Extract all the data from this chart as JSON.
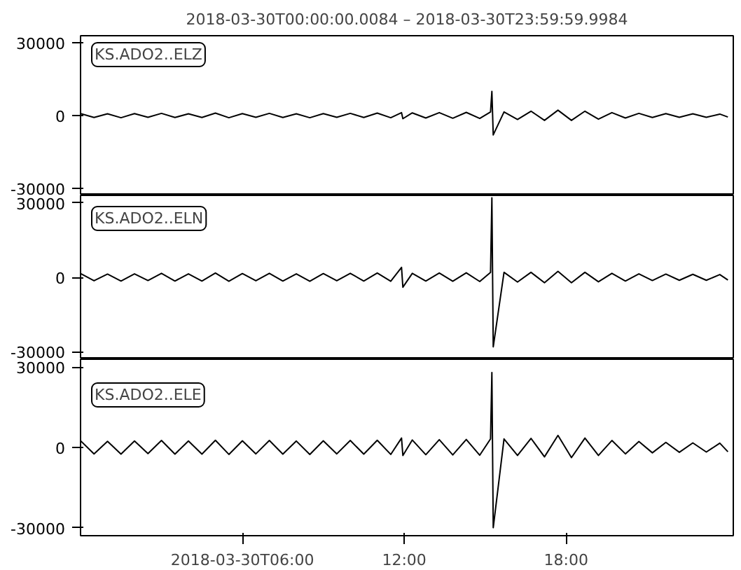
{
  "chart_data": [
    {
      "type": "line",
      "title": "2018-03-30T00:00:00.0084 – 2018-03-30T23:59:59.9984",
      "annotations": [
        "KS.ADO2..ELZ"
      ],
      "xlim": [
        0,
        24.2
      ],
      "ylim": [
        -33000,
        33000
      ],
      "yticks": [
        -30000,
        0,
        30000
      ],
      "tick_labels": "y",
      "series": [
        {
          "color": "#000000",
          "x": [
            0,
            0.5,
            1,
            1.5,
            2,
            2.5,
            3,
            3.5,
            4,
            4.5,
            5,
            5.5,
            6,
            6.5,
            7,
            7.5,
            8,
            8.5,
            9,
            9.5,
            10,
            10.5,
            11,
            11.5,
            11.9,
            11.95,
            12.3,
            12.8,
            13.3,
            13.8,
            14.3,
            14.8,
            15.2,
            15.25,
            15.3,
            15.7,
            16.2,
            16.7,
            17.2,
            17.7,
            18.2,
            18.7,
            19.2,
            19.7,
            20.2,
            20.7,
            21.2,
            21.7,
            22.2,
            22.7,
            23.2,
            23.7,
            24
          ],
          "values": [
            800,
            -800,
            700,
            -900,
            800,
            -700,
            900,
            -800,
            700,
            -800,
            1000,
            -900,
            800,
            -700,
            900,
            -800,
            700,
            -900,
            800,
            -700,
            900,
            -800,
            1000,
            -900,
            1200,
            -1300,
            1100,
            -1000,
            1200,
            -1100,
            1300,
            -1200,
            1500,
            10000,
            -8000,
            1500,
            -1600,
            1800,
            -2000,
            2200,
            -2000,
            1800,
            -1500,
            1200,
            -1000,
            900,
            -800,
            800,
            -700,
            700,
            -700,
            600,
            -600
          ]
        }
      ]
    },
    {
      "type": "line",
      "annotations": [
        "KS.ADO2..ELN"
      ],
      "xlim": [
        0,
        24.2
      ],
      "ylim": [
        -33000,
        33000
      ],
      "yticks": [
        -30000,
        0,
        30000
      ],
      "tick_labels": "y",
      "series": [
        {
          "color": "#000000",
          "x": [
            0,
            0.5,
            1,
            1.5,
            2,
            2.5,
            3,
            3.5,
            4,
            4.5,
            5,
            5.5,
            6,
            6.5,
            7,
            7.5,
            8,
            8.5,
            9,
            9.5,
            10,
            10.5,
            11,
            11.5,
            11.9,
            11.95,
            12.3,
            12.8,
            13.3,
            13.8,
            14.3,
            14.8,
            15.2,
            15.25,
            15.3,
            15.7,
            16.2,
            16.7,
            17.2,
            17.7,
            18.2,
            18.7,
            19.2,
            19.7,
            20.2,
            20.7,
            21.2,
            21.7,
            22.2,
            22.7,
            23.2,
            23.7,
            24
          ],
          "values": [
            1500,
            -1400,
            1300,
            -1500,
            1400,
            -1300,
            1600,
            -1500,
            1400,
            -1500,
            1700,
            -1600,
            1500,
            -1400,
            1600,
            -1500,
            1400,
            -1600,
            1500,
            -1400,
            1600,
            -1500,
            1700,
            -1600,
            4000,
            -4000,
            1600,
            -1500,
            1700,
            -1600,
            1800,
            -1700,
            2000,
            32000,
            -28000,
            2000,
            -1900,
            2000,
            -2200,
            2400,
            -2200,
            2000,
            -1800,
            1600,
            -1500,
            1400,
            -1300,
            1300,
            -1200,
            1200,
            -1200,
            1100,
            -1100
          ]
        }
      ]
    },
    {
      "type": "line",
      "annotations": [
        "KS.ADO2..ELE"
      ],
      "xlim": [
        0,
        24.2
      ],
      "xticks": [
        {
          "value": 6,
          "label": "2018-03-30T06:00"
        },
        {
          "value": 12,
          "label": "12:00"
        },
        {
          "value": 18,
          "label": "18:00"
        }
      ],
      "ylim": [
        -33000,
        33000
      ],
      "yticks": [
        -30000,
        0,
        30000
      ],
      "series": [
        {
          "color": "#000000",
          "x": [
            0,
            0.5,
            1,
            1.5,
            2,
            2.5,
            3,
            3.5,
            4,
            4.5,
            5,
            5.5,
            6,
            6.5,
            7,
            7.5,
            8,
            8.5,
            9,
            9.5,
            10,
            10.5,
            11,
            11.5,
            11.9,
            11.95,
            12.3,
            12.8,
            13.3,
            13.8,
            14.3,
            14.8,
            15.2,
            15.25,
            15.3,
            15.7,
            16.2,
            16.7,
            17.2,
            17.7,
            18.2,
            18.7,
            19.2,
            19.7,
            20.2,
            20.7,
            21.2,
            21.7,
            22.2,
            22.7,
            23.2,
            23.7,
            24
          ],
          "values": [
            2500,
            -2400,
            2300,
            -2500,
            2400,
            -2300,
            2600,
            -2500,
            2400,
            -2500,
            2700,
            -2600,
            2500,
            -2400,
            2600,
            -2500,
            2400,
            -2600,
            2500,
            -2400,
            2600,
            -2500,
            2700,
            -2600,
            3500,
            -3000,
            2800,
            -2700,
            2900,
            -2800,
            3000,
            -2900,
            3200,
            28000,
            -30000,
            3200,
            -3000,
            3400,
            -3500,
            4500,
            -3800,
            3500,
            -3000,
            2600,
            -2400,
            2200,
            -2000,
            1900,
            -1800,
            1700,
            -1700,
            1600,
            -1600
          ]
        }
      ]
    }
  ]
}
